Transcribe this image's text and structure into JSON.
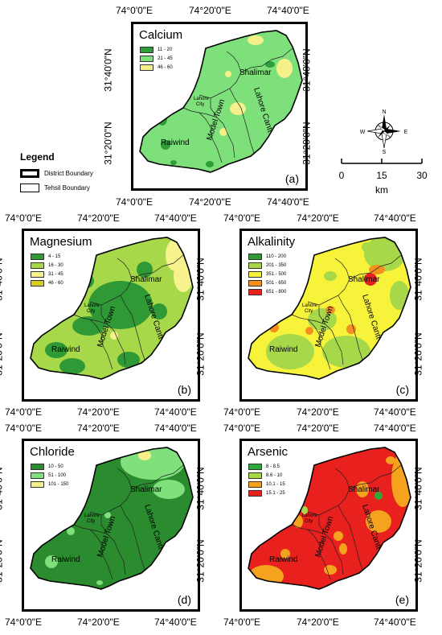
{
  "coords": {
    "top_row_x": [
      "74°0'0\"E",
      "74°20'0\"E",
      "74°40'0\"E"
    ],
    "lon_labels": [
      "74°0'0\"E",
      "74°20'0\"E",
      "74°40'0\"E"
    ],
    "lat_labels": [
      "31°40'0\"N",
      "31°20'0\"N"
    ]
  },
  "place_names": {
    "shalimar": "Shalimar",
    "lahore_city_1": "Lahore",
    "lahore_city_2": "City",
    "model_town": "Model Town",
    "lahore_cantt": "Lahore Cantt",
    "raiwind": "Raiwind"
  },
  "legend": {
    "title": "Legend",
    "district": "District Boundary",
    "tehsil": "Tehsil Boundary"
  },
  "scale_bar": {
    "ticks": [
      "0",
      "15",
      "30"
    ],
    "unit": "km"
  },
  "north_arrow": {
    "n": "N",
    "s": "S",
    "e": "E",
    "w": "W"
  },
  "panels": {
    "calcium": {
      "title": "Calcium",
      "label": "(a)",
      "classes": [
        {
          "range": "11 - 20",
          "color": "#2e9e3a"
        },
        {
          "range": "21 - 45",
          "color": "#7de07a"
        },
        {
          "range": "46 - 60",
          "color": "#f5f08a"
        }
      ]
    },
    "magnesium": {
      "title": "Magnesium",
      "label": "(b)",
      "classes": [
        {
          "range": "4 - 15",
          "color": "#2f9a35"
        },
        {
          "range": "16 - 30",
          "color": "#a6d84a"
        },
        {
          "range": "31 - 45",
          "color": "#f7f28e"
        },
        {
          "range": "46 - 60",
          "color": "#d9cc1f"
        }
      ]
    },
    "alkalinity": {
      "title": "Alkalinity",
      "label": "(c)",
      "classes": [
        {
          "range": "110 - 200",
          "color": "#2f9a35"
        },
        {
          "range": "201 - 350",
          "color": "#a6d84a"
        },
        {
          "range": "351 - 500",
          "color": "#f7f23a"
        },
        {
          "range": "501 - 650",
          "color": "#f5901f"
        },
        {
          "range": "651 - 800",
          "color": "#e8201e"
        }
      ]
    },
    "chloride": {
      "title": "Chloride",
      "label": "(d)",
      "classes": [
        {
          "range": "10 - 50",
          "color": "#2a8c2e"
        },
        {
          "range": "51 - 100",
          "color": "#7fe07c"
        },
        {
          "range": "101 - 150",
          "color": "#f5f08a"
        }
      ]
    },
    "arsenic": {
      "title": "Arsenic",
      "label": "(e)",
      "classes": [
        {
          "range": "8 - 8.5",
          "color": "#2fa83a"
        },
        {
          "range": "8.6 - 10",
          "color": "#a6d84a"
        },
        {
          "range": "10.1 - 15",
          "color": "#f5a21f"
        },
        {
          "range": "15.1 - 25",
          "color": "#e8201e"
        }
      ]
    }
  }
}
